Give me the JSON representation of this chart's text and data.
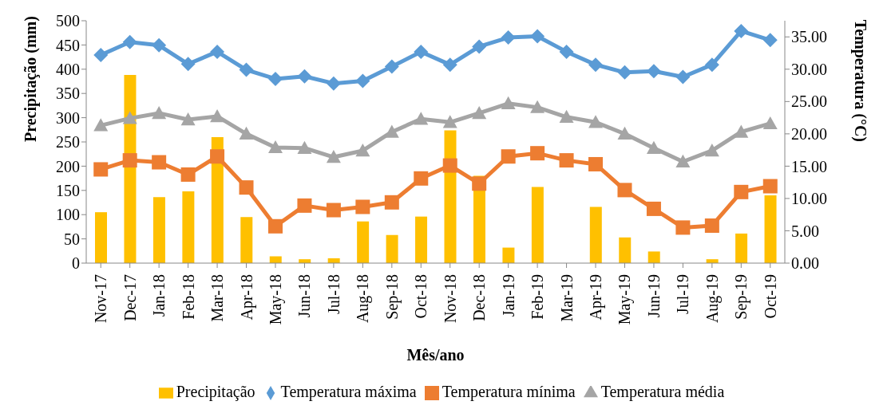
{
  "chart_data": {
    "type": "bar",
    "xlabel": "Mês/ano",
    "ylabel": "Precipitação (mm)",
    "y2label": "Temperatura (°C)",
    "categories": [
      "Nov-17",
      "Dec-17",
      "Jan-18",
      "Feb-18",
      "Mar-18",
      "Apr-18",
      "May-18",
      "Jun-18",
      "Jul-18",
      "Aug-18",
      "Sep-18",
      "Oct-18",
      "Nov-18",
      "Dec-18",
      "Jan-19",
      "Feb-19",
      "Mar-19",
      "Apr-19",
      "May-19",
      "Jun-19",
      "Jul-19",
      "Aug-19",
      "Sep-19",
      "Oct-19"
    ],
    "series": [
      {
        "name": "Precipitação",
        "color": "#ffc000",
        "values": [
          105,
          388,
          136,
          148,
          260,
          95,
          14,
          8,
          10,
          86,
          58,
          96,
          274,
          180,
          32,
          157,
          0,
          116,
          53,
          24,
          0,
          8,
          61,
          140
        ]
      },
      {
        "name": "Temperatura máxima",
        "type": "line",
        "axis": "y2",
        "color": "#5b9bd5",
        "marker": "diamond",
        "values": [
          32.2,
          34.2,
          33.7,
          30.8,
          32.7,
          29.9,
          28.5,
          28.9,
          27.8,
          28.2,
          30.4,
          32.7,
          30.7,
          33.5,
          34.9,
          35.1,
          32.7,
          30.7,
          29.5,
          29.7,
          28.8,
          30.7,
          35.9,
          34.5
        ]
      },
      {
        "name": "Temperatura mínima",
        "type": "line",
        "axis": "y2",
        "color": "#ed7d31",
        "marker": "square",
        "values": [
          14.5,
          15.9,
          15.6,
          13.7,
          16.5,
          11.7,
          5.7,
          8.9,
          8.2,
          8.7,
          9.4,
          13.1,
          15.1,
          12.3,
          16.5,
          17.0,
          15.9,
          15.3,
          11.3,
          8.4,
          5.5,
          5.8,
          11.0,
          11.9
        ]
      },
      {
        "name": "Temperatura média",
        "type": "line",
        "axis": "y2",
        "color": "#a5a5a5",
        "marker": "triangle",
        "values": [
          21.3,
          22.4,
          23.2,
          22.2,
          22.7,
          20.0,
          17.9,
          17.8,
          16.4,
          17.4,
          20.3,
          22.3,
          21.8,
          23.2,
          24.7,
          24.1,
          22.6,
          21.8,
          20.0,
          17.8,
          15.7,
          17.4,
          20.3,
          21.6
        ]
      }
    ],
    "ylim": [
      0,
      500
    ],
    "yticks": [
      0,
      50,
      100,
      150,
      200,
      250,
      300,
      350,
      400,
      450,
      500
    ],
    "y2lim": [
      0,
      37.5
    ],
    "y2ticks": [
      {
        "value": 0,
        "label": "0.00"
      },
      {
        "value": 5,
        "label": "5.00"
      },
      {
        "value": 10,
        "label": "10.00"
      },
      {
        "value": 15,
        "label": "15.00"
      },
      {
        "value": 20,
        "label": "20.00"
      },
      {
        "value": 25,
        "label": "25.00"
      },
      {
        "value": 30,
        "label": "30.00"
      },
      {
        "value": 35,
        "label": "35.00"
      }
    ],
    "grid": false,
    "legend": "bottom"
  }
}
